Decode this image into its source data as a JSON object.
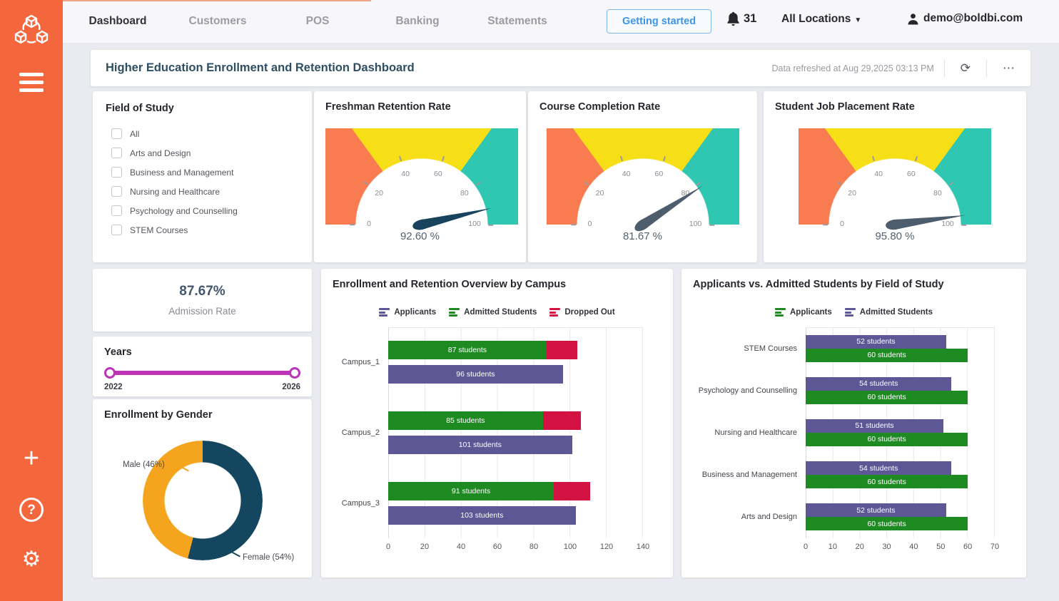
{
  "app": {
    "sidebar": {
      "color": "#F4673D",
      "icons": [
        {
          "name": "boldbi-logo"
        },
        {
          "name": "hamburger-menu-icon"
        },
        {
          "name": "add-icon",
          "glyph": "+"
        },
        {
          "name": "help-icon",
          "glyph": "?"
        },
        {
          "name": "settings-gear-icon",
          "glyph": "⚙"
        }
      ]
    },
    "topnav": {
      "tabs": [
        {
          "label": "Dashboard",
          "active": true
        },
        {
          "label": "Customers",
          "active": false
        },
        {
          "label": "POS",
          "active": false
        },
        {
          "label": "Banking",
          "active": false
        },
        {
          "label": "Statements",
          "active": false
        }
      ],
      "getting_started_label": "Getting started",
      "notification_count": "31",
      "location_selector": "All Locations",
      "user_email": "demo@boldbi.com",
      "accent_color": "#3D95E8"
    }
  },
  "board": {
    "title": "Higher Education Enrollment and Retention Dashboard",
    "refreshed_text": "Data refreshed at Aug 29,2025 03:13 PM",
    "refresh_icon": "refresh-icon",
    "more_icon": "more-options-icon"
  },
  "filters": {
    "field_of_study": {
      "title": "Field of Study",
      "options": [
        "All",
        "Arts and Design",
        "Business and Management",
        "Nursing and Healthcare",
        "Psychology and Counselling",
        "STEM Courses"
      ],
      "checked": []
    }
  },
  "chart_data": [
    {
      "id": "freshman-retention",
      "type": "gauge",
      "title": "Freshman Retention Rate",
      "value": 92.6,
      "value_label": "92.60 %",
      "min": 0,
      "max": 100,
      "ticks": [
        0,
        20,
        40,
        60,
        80,
        100
      ],
      "segments": [
        {
          "from": 0,
          "to": 30,
          "color": "#F97C51"
        },
        {
          "from": 30,
          "to": 70,
          "color": "#F6DF16"
        },
        {
          "from": 70,
          "to": 100,
          "color": "#2FC7B2"
        }
      ],
      "needle_color": "#17435C"
    },
    {
      "id": "course-completion",
      "type": "gauge",
      "title": "Course Completion Rate",
      "value": 81.67,
      "value_label": "81.67 %",
      "min": 0,
      "max": 100,
      "ticks": [
        0,
        20,
        40,
        60,
        80,
        100
      ],
      "segments": [
        {
          "from": 0,
          "to": 30,
          "color": "#F97C51"
        },
        {
          "from": 30,
          "to": 70,
          "color": "#F6DF16"
        },
        {
          "from": 70,
          "to": 100,
          "color": "#2FC7B2"
        }
      ],
      "needle_color": "#4E5D6D"
    },
    {
      "id": "job-placement",
      "type": "gauge",
      "title": "Student Job Placement Rate",
      "value": 95.8,
      "value_label": "95.80 %",
      "min": 0,
      "max": 100,
      "ticks": [
        0,
        20,
        40,
        60,
        80,
        100
      ],
      "segments": [
        {
          "from": 0,
          "to": 30,
          "color": "#F97C51"
        },
        {
          "from": 30,
          "to": 70,
          "color": "#F6DF16"
        },
        {
          "from": 70,
          "to": 100,
          "color": "#2FC7B2"
        }
      ],
      "needle_color": "#4E5D6D"
    },
    {
      "id": "admission-rate",
      "type": "kpi",
      "value_label": "87.67%",
      "label": "Admission Rate"
    },
    {
      "id": "years",
      "type": "range_slider",
      "title": "Years",
      "min_label": "2022",
      "max_label": "2026",
      "range": [
        2022,
        2026
      ],
      "color": "#BC34B5"
    },
    {
      "id": "enrollment-by-gender",
      "type": "pie",
      "title": "Enrollment by Gender",
      "donut": true,
      "slices": [
        {
          "label": "Female (54%)",
          "value": 54,
          "color": "#15465F"
        },
        {
          "label": "Male (46%)",
          "value": 46,
          "color": "#F5A51D"
        }
      ]
    },
    {
      "id": "campus-overview",
      "type": "bar",
      "orientation": "horizontal",
      "title": "Enrollment and Retention Overview by Campus",
      "categories": [
        "Campus_1",
        "Campus_2",
        "Campus_3"
      ],
      "series": [
        {
          "name": "Applicants",
          "color": "#5E5796",
          "values": [
            96,
            101,
            103
          ],
          "labels": [
            "96 students",
            "101 students",
            "103 students"
          ]
        },
        {
          "name": "Admitted Students",
          "color": "#1E8A22",
          "values": [
            87,
            85,
            91
          ],
          "labels": [
            "87 students",
            "85 students",
            "91 students"
          ]
        },
        {
          "name": "Dropped Out",
          "color": "#D11243",
          "values": [
            17,
            21,
            20
          ],
          "labels": null,
          "estimated": true
        }
      ],
      "bar_rows": [
        [
          "Admitted Students",
          "Dropped Out"
        ],
        [
          "Applicants"
        ]
      ],
      "xlim": [
        0,
        140
      ],
      "xticks": [
        0,
        20,
        40,
        60,
        80,
        100,
        120,
        140
      ],
      "legend_position": "top",
      "grid": true
    },
    {
      "id": "applicants-vs-admitted",
      "type": "bar",
      "orientation": "horizontal",
      "title": "Applicants vs. Admitted Students by Field of Study",
      "categories": [
        "STEM Courses",
        "Psychology and Counselling",
        "Nursing and Healthcare",
        "Business and Management",
        "Arts and Design"
      ],
      "series": [
        {
          "name": "Applicants",
          "color": "#1E8A22",
          "values": [
            60,
            60,
            60,
            60,
            60
          ],
          "labels": [
            "60 students",
            "60 students",
            "60 students",
            "60 students",
            "60 students"
          ]
        },
        {
          "name": "Admitted Students",
          "color": "#5E5796",
          "values": [
            52,
            54,
            51,
            54,
            52
          ],
          "labels": [
            "52 students",
            "54 students",
            "51 students",
            "54 students",
            "52 students"
          ]
        }
      ],
      "bar_rows": [
        [
          "Admitted Students"
        ],
        [
          "Applicants"
        ]
      ],
      "xlim": [
        0,
        70
      ],
      "xticks": [
        0,
        10,
        20,
        30,
        40,
        50,
        60,
        70
      ],
      "legend_position": "top",
      "grid": true
    }
  ]
}
